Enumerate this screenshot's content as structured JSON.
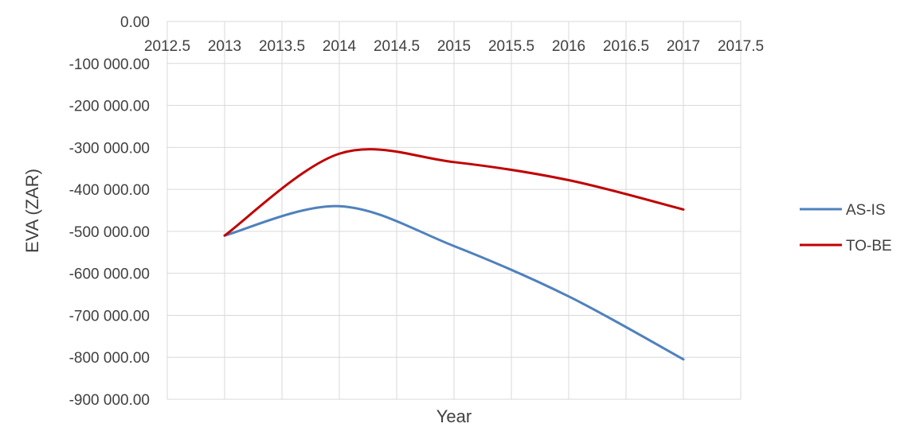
{
  "chart_data": {
    "type": "line",
    "title": "",
    "xlabel": "Year",
    "ylabel": "EVA (ZAR)",
    "xlim": [
      2012.5,
      2017.5
    ],
    "ylim": [
      -900000,
      0
    ],
    "x_ticks": [
      "2012.5",
      "2013",
      "2013.5",
      "2014",
      "2014.5",
      "2015",
      "2015.5",
      "2016",
      "2016.5",
      "2017",
      "2017.5"
    ],
    "y_ticks": [
      "0.00",
      "-100 000.00",
      "-200 000.00",
      "-300 000.00",
      "-400 000.00",
      "-500 000.00",
      "-600 000.00",
      "-700 000.00",
      "-800 000.00",
      "-900 000.00"
    ],
    "grid": true,
    "smooth": true,
    "legend_position": "right",
    "x": [
      2013,
      2014,
      2015,
      2016,
      2017
    ],
    "series": [
      {
        "name": "AS-IS",
        "color": "#4f81bd",
        "values": [
          -510000,
          -440000,
          -535000,
          -655000,
          -805000
        ]
      },
      {
        "name": "TO-BE",
        "color": "#c00000",
        "values": [
          -510000,
          -315000,
          -335000,
          -378000,
          -448000
        ]
      }
    ]
  }
}
